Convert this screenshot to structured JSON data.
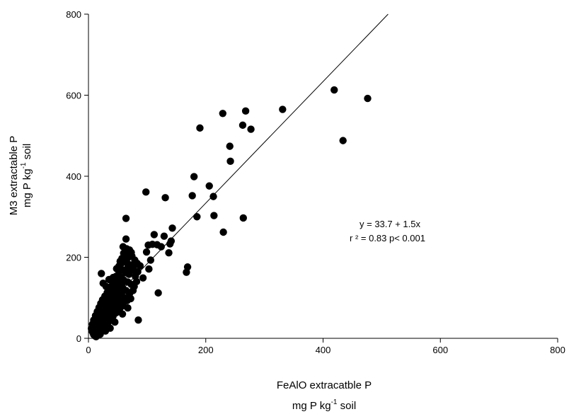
{
  "chart_data": {
    "type": "scatter",
    "xlabel_line1": "FeAlO extracatble P",
    "xlabel_line2_pre": "mg P kg",
    "xlabel_line2_sup": "-1",
    "xlabel_line2_post": " soil",
    "ylabel_line1": "M3 extractable P",
    "ylabel_line2_pre": "mg P kg",
    "ylabel_line2_sup": "-1",
    "ylabel_line2_post": " soil",
    "xlim": [
      0,
      800
    ],
    "ylim": [
      0,
      800
    ],
    "xticks": [
      "0",
      "200",
      "400",
      "600",
      "800"
    ],
    "yticks": [
      "0",
      "200",
      "400",
      "600",
      "800"
    ],
    "grid": false,
    "equation": "y = 33.7 + 1.5x",
    "r2_text": "r ² = 0.83 p< 0.001",
    "regression": {
      "intercept": 33.7,
      "slope": 1.5
    },
    "colors": {
      "points": "#000000",
      "line": "#000000",
      "axis": "#000000"
    },
    "points": [
      [
        419,
        613
      ],
      [
        476,
        592
      ],
      [
        434,
        488
      ],
      [
        331,
        565
      ],
      [
        268,
        561
      ],
      [
        229,
        555
      ],
      [
        263,
        526
      ],
      [
        277,
        516
      ],
      [
        190,
        519
      ],
      [
        241,
        474
      ],
      [
        242,
        437
      ],
      [
        180,
        399
      ],
      [
        206,
        376
      ],
      [
        177,
        352
      ],
      [
        213,
        350
      ],
      [
        98,
        361
      ],
      [
        131,
        347
      ],
      [
        64,
        296
      ],
      [
        185,
        300
      ],
      [
        214,
        303
      ],
      [
        264,
        297
      ],
      [
        230,
        262
      ],
      [
        143,
        272
      ],
      [
        112,
        256
      ],
      [
        129,
        252
      ],
      [
        141,
        240
      ],
      [
        139,
        233
      ],
      [
        137,
        211
      ],
      [
        169,
        176
      ],
      [
        167,
        163
      ],
      [
        119,
        112
      ],
      [
        85,
        45
      ],
      [
        102,
        230
      ],
      [
        109,
        232
      ],
      [
        117,
        231
      ],
      [
        124,
        226
      ],
      [
        99,
        213
      ],
      [
        106,
        193
      ],
      [
        103,
        171
      ],
      [
        88,
        179
      ],
      [
        93,
        149
      ],
      [
        84,
        164
      ],
      [
        64,
        245
      ],
      [
        59,
        226
      ],
      [
        65,
        221
      ],
      [
        70,
        218
      ],
      [
        62,
        206
      ],
      [
        68,
        200
      ],
      [
        73,
        212
      ],
      [
        57,
        197
      ],
      [
        61,
        190
      ],
      [
        66,
        186
      ],
      [
        71,
        181
      ],
      [
        77,
        177
      ],
      [
        55,
        182
      ],
      [
        58,
        168
      ],
      [
        63,
        162
      ],
      [
        69,
        158
      ],
      [
        75,
        168
      ],
      [
        80,
        153
      ],
      [
        52,
        165
      ],
      [
        56,
        150
      ],
      [
        60,
        144
      ],
      [
        67,
        139
      ],
      [
        73,
        133
      ],
      [
        78,
        128
      ],
      [
        47,
        153
      ],
      [
        51,
        141
      ],
      [
        54,
        131
      ],
      [
        59,
        122
      ],
      [
        64,
        118
      ],
      [
        70,
        110
      ],
      [
        44,
        139
      ],
      [
        48,
        128
      ],
      [
        52,
        118
      ],
      [
        56,
        108
      ],
      [
        61,
        100
      ],
      [
        66,
        93
      ],
      [
        40,
        130
      ],
      [
        43,
        118
      ],
      [
        47,
        106
      ],
      [
        51,
        97
      ],
      [
        55,
        88
      ],
      [
        59,
        80
      ],
      [
        36,
        122
      ],
      [
        38,
        110
      ],
      [
        41,
        99
      ],
      [
        45,
        89
      ],
      [
        49,
        81
      ],
      [
        53,
        72
      ],
      [
        32,
        113
      ],
      [
        34,
        101
      ],
      [
        37,
        90
      ],
      [
        40,
        80
      ],
      [
        44,
        70
      ],
      [
        47,
        63
      ],
      [
        28,
        104
      ],
      [
        30,
        92
      ],
      [
        33,
        82
      ],
      [
        36,
        72
      ],
      [
        39,
        62
      ],
      [
        42,
        55
      ],
      [
        24,
        95
      ],
      [
        26,
        84
      ],
      [
        29,
        74
      ],
      [
        32,
        64
      ],
      [
        35,
        55
      ],
      [
        38,
        47
      ],
      [
        21,
        86
      ],
      [
        23,
        75
      ],
      [
        25,
        66
      ],
      [
        28,
        56
      ],
      [
        31,
        48
      ],
      [
        34,
        40
      ],
      [
        18,
        76
      ],
      [
        20,
        66
      ],
      [
        22,
        57
      ],
      [
        24,
        48
      ],
      [
        27,
        40
      ],
      [
        30,
        33
      ],
      [
        15,
        66
      ],
      [
        17,
        57
      ],
      [
        19,
        48
      ],
      [
        21,
        40
      ],
      [
        23,
        33
      ],
      [
        26,
        26
      ],
      [
        12,
        56
      ],
      [
        14,
        47
      ],
      [
        16,
        39
      ],
      [
        18,
        32
      ],
      [
        20,
        26
      ],
      [
        22,
        20
      ],
      [
        9,
        45
      ],
      [
        11,
        38
      ],
      [
        13,
        31
      ],
      [
        15,
        25
      ],
      [
        17,
        19
      ],
      [
        19,
        14
      ],
      [
        7,
        35
      ],
      [
        8,
        28
      ],
      [
        10,
        22
      ],
      [
        12,
        17
      ],
      [
        14,
        12
      ],
      [
        16,
        8
      ],
      [
        5,
        24
      ],
      [
        6,
        18
      ],
      [
        8,
        13
      ],
      [
        9,
        9
      ],
      [
        11,
        6
      ],
      [
        13,
        4
      ],
      [
        22,
        160
      ],
      [
        25,
        136
      ],
      [
        35,
        145
      ],
      [
        42,
        150
      ],
      [
        48,
        172
      ],
      [
        52,
        178
      ],
      [
        30,
        128
      ],
      [
        39,
        115
      ],
      [
        58,
        60
      ],
      [
        45,
        40
      ],
      [
        37,
        25
      ],
      [
        29,
        18
      ],
      [
        62,
        92
      ],
      [
        67,
        75
      ],
      [
        72,
        98
      ],
      [
        76,
        118
      ],
      [
        82,
        140
      ],
      [
        57,
        132
      ],
      [
        50,
        100
      ],
      [
        44,
        85
      ],
      [
        36,
        60
      ],
      [
        27,
        30
      ],
      [
        20,
        10
      ],
      [
        10,
        15
      ],
      [
        74,
        203
      ],
      [
        79,
        193
      ],
      [
        83,
        185
      ],
      [
        66,
        172
      ],
      [
        60,
        210
      ],
      [
        54,
        190
      ]
    ]
  }
}
